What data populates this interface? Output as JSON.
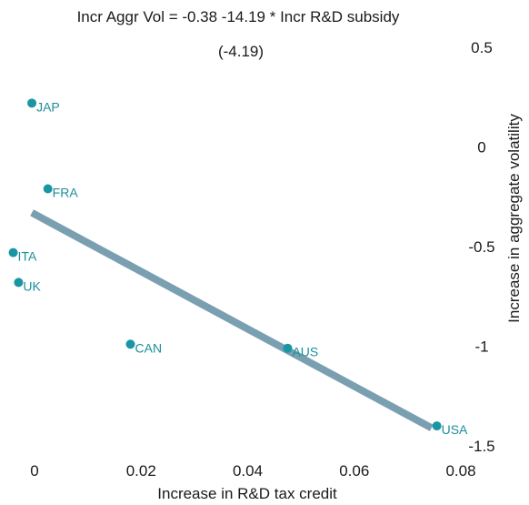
{
  "chart_data": {
    "type": "scatter",
    "title": "Incr Aggr Vol = -0.38 -14.19 * Incr R&D subsidy",
    "subtitle": "(-4.19)",
    "xlabel": "Increase in R&D tax credit",
    "ylabel": "Increase in aggregate volatility",
    "xlim": [
      -0.004,
      0.08
    ],
    "ylim": [
      -1.5,
      0.5
    ],
    "x_ticks": [
      "0",
      "0.02",
      "0.04",
      "0.06",
      "0.08"
    ],
    "y_ticks": [
      "0.5",
      "0",
      "-0.5",
      "-1",
      "-1.5"
    ],
    "points": [
      {
        "label": "JAP",
        "x": -0.0005,
        "y": 0.22
      },
      {
        "label": "FRA",
        "x": 0.0025,
        "y": -0.21
      },
      {
        "label": "ITA",
        "x": -0.004,
        "y": -0.53
      },
      {
        "label": "UK",
        "x": -0.003,
        "y": -0.68
      },
      {
        "label": "CAN",
        "x": 0.018,
        "y": -0.99
      },
      {
        "label": "AUS",
        "x": 0.0475,
        "y": -1.01
      },
      {
        "label": "USA",
        "x": 0.0755,
        "y": -1.4
      }
    ],
    "fit_line": {
      "x": [
        -0.0005,
        0.0745
      ],
      "y": [
        -0.33,
        -1.41
      ]
    },
    "colors": {
      "points": "#1a96a3",
      "labels": "#1a8f9a",
      "fit_line": "#7a9fb1"
    },
    "grid": false,
    "legend": "none"
  }
}
